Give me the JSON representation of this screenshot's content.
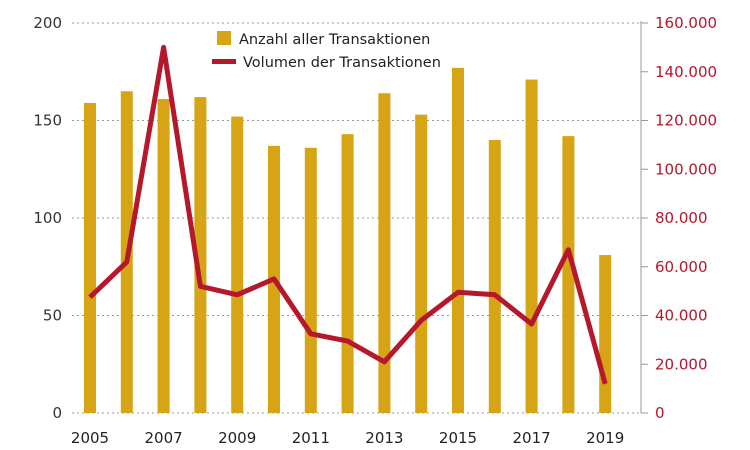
{
  "chart_data": {
    "type": "bar+line",
    "categories": [
      "2005",
      "2006",
      "2007",
      "2008",
      "2009",
      "2010",
      "2011",
      "2012",
      "2013",
      "2014",
      "2015",
      "2016",
      "2017",
      "2018",
      "2019"
    ],
    "x_tick_labels": [
      "2005",
      "",
      "2007",
      "",
      "2009",
      "",
      "2011",
      "",
      "2013",
      "",
      "2015",
      "",
      "2017",
      "",
      "2019"
    ],
    "series": [
      {
        "name": "Anzahl aller Transaktionen",
        "type": "bar",
        "axis": "left",
        "color": "#d6a414",
        "values": [
          159,
          165,
          161,
          162,
          152,
          137,
          136,
          143,
          164,
          153,
          177,
          140,
          171,
          142,
          81
        ]
      },
      {
        "name": "Volumen der Transaktionen",
        "type": "line",
        "axis": "right",
        "color": "#b5172b",
        "values": [
          47500,
          62000,
          150000,
          52000,
          48500,
          55000,
          32500,
          29500,
          21000,
          38000,
          49500,
          48500,
          36500,
          67000,
          12000
        ]
      }
    ],
    "y_left": {
      "min": 0,
      "max": 200,
      "ticks": [
        "0",
        "50",
        "100",
        "150",
        "200"
      ]
    },
    "y_right": {
      "min": 0,
      "max": 160000,
      "ticks": [
        "0",
        "20.000",
        "40.000",
        "60.000",
        "80.000",
        "100.000",
        "120.000",
        "140.000",
        "160.000"
      ],
      "color": "#b5172b"
    },
    "grid": "horizontal dotted",
    "legend_position": "top-center"
  }
}
